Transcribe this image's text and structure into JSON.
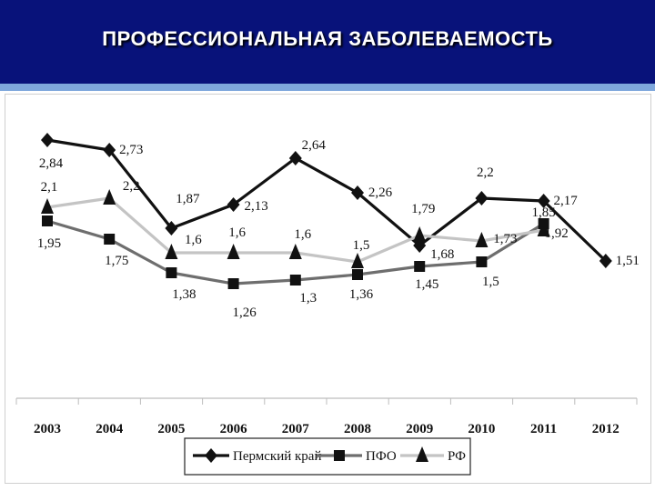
{
  "header": {
    "title": "ПРОФЕССИОНАЛЬНАЯ ЗАБОЛЕВАЕМОСТЬ"
  },
  "colors": {
    "header_bg": "#08127a",
    "stripe": "#7ea7dc",
    "perm": "#111111",
    "pfo": "#6e6e6e",
    "rf": "#c4c4c4"
  },
  "chart_data": {
    "type": "line",
    "categories": [
      "2003",
      "2004",
      "2005",
      "2006",
      "2007",
      "2008",
      "2009",
      "2010",
      "2011",
      "2012"
    ],
    "ylim": [
      0,
      3.2
    ],
    "grid": false,
    "legend_position": "bottom",
    "series": [
      {
        "name": "Пермский край",
        "marker": "diamond",
        "color": "#111111",
        "values": [
          2.84,
          2.73,
          1.87,
          2.13,
          2.64,
          2.26,
          1.68,
          2.2,
          2.17,
          1.51
        ],
        "labels": [
          "2,84",
          "2,73",
          "1,87",
          "2,13",
          "2,64",
          "2,26",
          "1,68",
          "2,2",
          "2,17",
          "1,51"
        ]
      },
      {
        "name": "ПФО",
        "marker": "square",
        "color": "#6e6e6e",
        "values": [
          1.95,
          1.75,
          1.38,
          1.26,
          1.3,
          1.36,
          1.45,
          1.5,
          1.92,
          null
        ],
        "labels": [
          "1,95",
          "1,75",
          "1,38",
          "1,26",
          "1,3",
          "1,36",
          "1,45",
          "1,5",
          "1,92",
          ""
        ]
      },
      {
        "name": "РФ",
        "marker": "triangle",
        "color": "#c4c4c4",
        "values": [
          2.1,
          2.2,
          1.6,
          1.6,
          1.6,
          1.5,
          1.79,
          1.73,
          1.85,
          null
        ],
        "labels": [
          "2,1",
          "2,2",
          "1,6",
          "1,6",
          "1,6",
          "1,5",
          "1,79",
          "1,73",
          "1,85",
          ""
        ]
      }
    ]
  }
}
